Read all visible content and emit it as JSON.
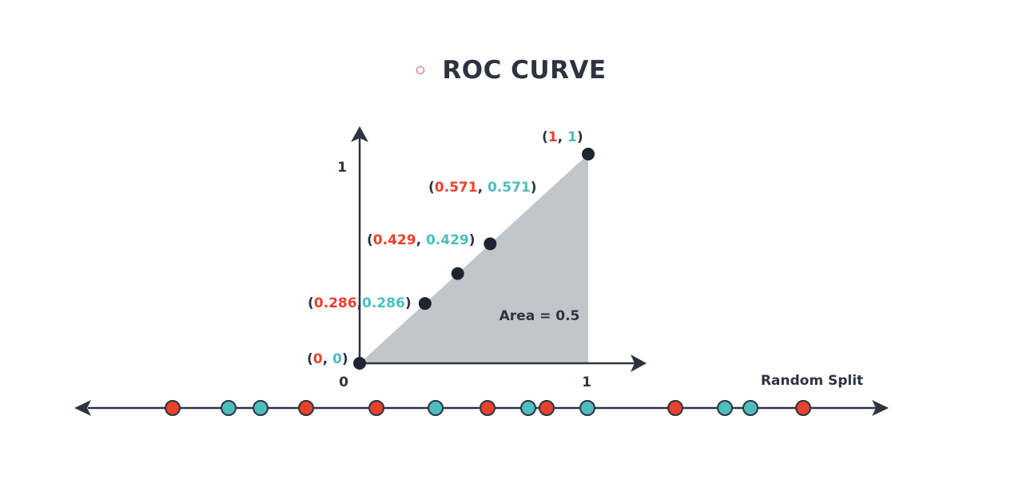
{
  "title": "ROC CURVE",
  "colors": {
    "red": "#e8412c",
    "teal": "#4dbdbd",
    "dark": "#2d3440",
    "area_fill": "#c1c6cb",
    "point": "#1f2530"
  },
  "chart_data": {
    "type": "area",
    "title": "ROC CURVE",
    "x_ticks": [
      "0",
      "1"
    ],
    "y_ticks": [
      "1"
    ],
    "xlim": [
      0,
      1
    ],
    "ylim": [
      0,
      1
    ],
    "grid": false,
    "points": [
      {
        "x": 0,
        "y": 0,
        "x_label": "0",
        "y_label": "0",
        "separator": ", "
      },
      {
        "x": 0.286,
        "y": 0.286,
        "x_label": "0.286",
        "y_label": "0.286",
        "separator": ","
      },
      {
        "x": 0.429,
        "y": 0.429,
        "x_label": "0.429",
        "y_label": "0.429",
        "separator": ", "
      },
      {
        "x": 0.571,
        "y": 0.571,
        "x_label": "0.571",
        "y_label": "0.571",
        "separator": ", "
      },
      {
        "x": 1,
        "y": 1,
        "x_label": "1",
        "y_label": "1",
        "separator": ", "
      }
    ],
    "area_label": "Area = 0.5",
    "number_line": {
      "label": "Random Split",
      "dots": [
        "red",
        "teal",
        "teal",
        "red",
        "red",
        "teal",
        "red",
        "teal",
        "red",
        "teal",
        "red",
        "teal",
        "teal",
        "red"
      ]
    }
  }
}
